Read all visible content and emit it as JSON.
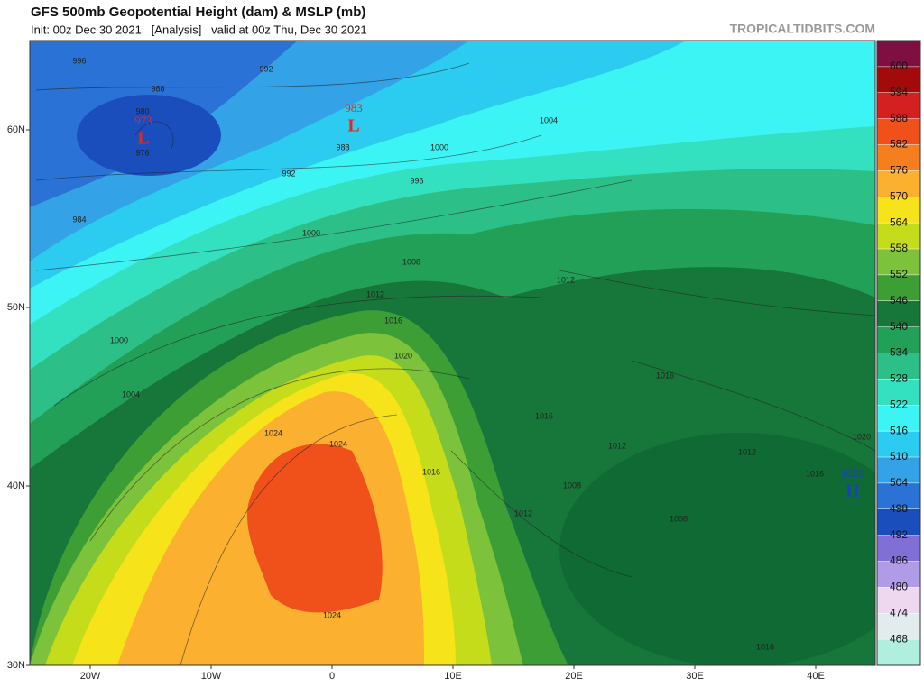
{
  "header": {
    "title": "GFS 500mb Geopotential Height (dam) & MSLP (mb)",
    "subtitle": "Init: 00z Dec 30 2021   [Analysis]   valid at 00z Thu, Dec 30 2021",
    "site": "TROPICALTIDBITS.COM"
  },
  "lat_labels": [
    "60N",
    "50N",
    "40N",
    "30N"
  ],
  "lon_labels": [
    "20W",
    "10W",
    "0",
    "10E",
    "20E",
    "30E",
    "40E"
  ],
  "colorbar": {
    "levels": [
      600,
      594,
      588,
      582,
      576,
      570,
      564,
      558,
      552,
      546,
      540,
      534,
      528,
      522,
      516,
      510,
      504,
      498,
      492,
      486,
      480,
      474,
      468
    ],
    "colors": [
      "#7d1040",
      "#a30a0a",
      "#d42020",
      "#f0501a",
      "#f57f1f",
      "#fbb030",
      "#f6e31a",
      "#c4dc1a",
      "#7cc23a",
      "#3e9e36",
      "#17763a",
      "#22a058",
      "#2cc088",
      "#33e0c0",
      "#3cf4f4",
      "#2ccbf0",
      "#33a2e6",
      "#2a72d6",
      "#1a4ebd",
      "#8070d6",
      "#b09ce6",
      "#eed8f0",
      "#e2ecec",
      "#b0efdd"
    ]
  },
  "isobar_labels": [
    "996",
    "992",
    "988",
    "980",
    "976",
    "984",
    "992",
    "988",
    "1000",
    "1008",
    "1012",
    "1016",
    "1020",
    "1024",
    "1024",
    "1000",
    "1004",
    "996",
    "1000",
    "1004",
    "1012",
    "1016",
    "1016",
    "1012",
    "1012",
    "1008",
    "1008",
    "1016",
    "1012",
    "1024",
    "1016",
    "1016",
    "1020"
  ],
  "pressure_centers": [
    {
      "value": "973",
      "letter": "L"
    },
    {
      "value": "983",
      "letter": "L"
    },
    {
      "value": "1030",
      "letter": "H"
    }
  ]
}
